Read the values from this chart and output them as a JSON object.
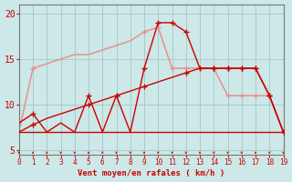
{
  "xlabel": "Vent moyen/en rafales ( km/h )",
  "background_color": "#cce8e8",
  "grid_color": "#aacccc",
  "xlim": [
    0,
    19
  ],
  "ylim": [
    4.5,
    21
  ],
  "yticks": [
    5,
    10,
    15,
    20
  ],
  "xticks": [
    0,
    1,
    2,
    3,
    4,
    5,
    6,
    7,
    8,
    9,
    10,
    11,
    12,
    13,
    14,
    15,
    16,
    17,
    18,
    19
  ],
  "x": [
    0,
    1,
    2,
    3,
    4,
    5,
    6,
    7,
    8,
    9,
    10,
    11,
    12,
    13,
    14,
    15,
    16,
    17,
    18,
    19
  ],
  "wind_avg": [
    7,
    7.8,
    8.5,
    9.0,
    9.5,
    10.0,
    10.5,
    11.0,
    11.5,
    12.0,
    12.5,
    13.0,
    13.5,
    14.0,
    14.0,
    14.0,
    14.0,
    14.0,
    11.0,
    7.0
  ],
  "wind_gust": [
    8,
    9,
    7,
    8,
    7,
    11,
    7,
    11,
    7,
    14,
    19,
    19,
    18,
    14,
    14,
    14,
    14,
    14,
    11,
    7
  ],
  "wind_rafales": [
    7,
    14,
    14.5,
    15.0,
    15.5,
    15.5,
    16.0,
    16.5,
    17.0,
    18.0,
    18.5,
    14,
    14,
    14,
    14,
    11,
    11,
    11,
    11,
    7
  ],
  "dark_red": "#cc0000",
  "light_pink": "#e89090",
  "base_y": 7.0,
  "wind_avg_markers": [
    1,
    5,
    7,
    9,
    12,
    14,
    15,
    16,
    17,
    18,
    19
  ],
  "gust_markers": [
    1,
    5,
    7,
    9,
    10,
    11,
    12,
    13,
    14,
    15,
    16,
    17,
    18,
    19
  ],
  "rafales_markers": [
    1,
    9,
    10,
    11,
    12,
    13,
    14,
    15,
    16,
    17,
    18
  ]
}
